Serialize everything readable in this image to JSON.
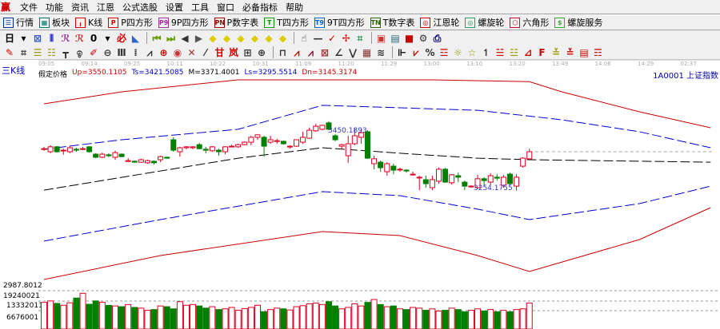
{
  "menu": {
    "logo": "赢",
    "items": [
      "文件",
      "功能",
      "资讯",
      "江恩",
      "公式选股",
      "设置",
      "工具",
      "窗口",
      "必备指标",
      "帮助"
    ]
  },
  "toolbar1": [
    {
      "label": "行情",
      "icon": "quote-list-icon",
      "glyph": "☰",
      "color": "#003399"
    },
    {
      "label": "板块",
      "icon": "sector-icon",
      "glyph": "▦",
      "color": "#007766"
    },
    {
      "label": "K线",
      "icon": "kline-icon",
      "glyph": "╻",
      "color": "#cc0000"
    },
    {
      "label": "P四方形",
      "icon": "p-square-icon",
      "glyph": "P",
      "color": "#cc0000"
    },
    {
      "label": "9P四方形",
      "icon": "9p-square-icon",
      "glyph": "P9",
      "color": "#993399"
    },
    {
      "label": "P数字表",
      "icon": "p-number-table-icon",
      "glyph": "PN",
      "color": "#990000"
    },
    {
      "label": "T四方形",
      "icon": "t-square-icon",
      "glyph": "T",
      "color": "#009900"
    },
    {
      "label": "9T四方形",
      "icon": "9t-square-icon",
      "glyph": "T9",
      "color": "#0066cc"
    },
    {
      "label": "T数字表",
      "icon": "t-number-table-icon",
      "glyph": "TN",
      "color": "#336600"
    },
    {
      "label": "江恩轮",
      "icon": "gann-wheel-icon",
      "glyph": "◎",
      "color": "#cc0000"
    },
    {
      "label": "螺旋轮",
      "icon": "spiral-wheel-icon",
      "glyph": "◎",
      "color": "#339966"
    },
    {
      "label": "六角形",
      "icon": "hexagon-icon",
      "glyph": "⬡",
      "color": "#cc0033"
    },
    {
      "label": "螺旋服务",
      "icon": "dollar-icon",
      "glyph": "$",
      "color": "#33aa33"
    }
  ],
  "toolbar2": [
    {
      "icon": "window-layout-icon",
      "glyph": "日",
      "color": "#000"
    },
    {
      "icon": "dropdown-arrow-icon",
      "glyph": "▾",
      "color": "#000"
    },
    {
      "icon": "indicator-icon",
      "glyph": "⊠",
      "color": "#3355cc"
    },
    {
      "icon": "bars-icon",
      "glyph": "⫴",
      "color": "#3333cc"
    },
    {
      "icon": "wave-icon",
      "glyph": "ℛ",
      "color": "#993399"
    },
    {
      "icon": "wave-red-icon",
      "glyph": "ℛ",
      "color": "#cc3333"
    },
    {
      "icon": "zero-icon",
      "glyph": "0",
      "color": "#000"
    },
    {
      "icon": "dropdown-arrow-icon",
      "glyph": "▾",
      "color": "#000"
    },
    {
      "icon": "bisect-icon",
      "glyph": "必",
      "color": "#cc0000"
    },
    {
      "icon": "flag-icon",
      "glyph": "◣",
      "color": "#3366cc"
    },
    {
      "sep": true
    },
    {
      "icon": "first-icon",
      "glyph": "⏮",
      "color": "#669900"
    },
    {
      "icon": "last-icon",
      "glyph": "⏭",
      "color": "#669900"
    },
    {
      "icon": "prev-icon",
      "glyph": "◀",
      "color": "#333"
    },
    {
      "icon": "next-icon",
      "glyph": "▶",
      "color": "#555"
    },
    {
      "icon": "zoom-in-icon",
      "glyph": "◆",
      "color": "#ddcc00"
    },
    {
      "icon": "zoom-out-icon",
      "glyph": "◆",
      "color": "#ddcc00"
    },
    {
      "icon": "expand-icon",
      "glyph": "◆",
      "color": "#ddcc00"
    },
    {
      "icon": "shrink-icon",
      "glyph": "◆",
      "color": "#ddcc00"
    },
    {
      "icon": "move-left-icon",
      "glyph": "◆",
      "color": "#ddcc00"
    },
    {
      "icon": "move-right-icon",
      "glyph": "◆",
      "color": "#ddcc00"
    },
    {
      "sep": true
    },
    {
      "icon": "hand-icon",
      "glyph": "☝",
      "color": "#333"
    },
    {
      "icon": "hline-icon",
      "glyph": "—",
      "color": "#333"
    },
    {
      "icon": "check-icon",
      "glyph": "✓",
      "color": "#cc0000"
    },
    {
      "icon": "cross-icon",
      "glyph": "✢",
      "color": "#cc0000"
    },
    {
      "icon": "grid-icon",
      "glyph": "⌗",
      "color": "#339966"
    },
    {
      "sep": true
    },
    {
      "icon": "calendar-icon",
      "glyph": "▣",
      "color": "#cc3333"
    },
    {
      "icon": "calculator-icon",
      "glyph": "▤",
      "color": "#226677"
    },
    {
      "icon": "save-icon",
      "glyph": "■",
      "color": "#cc0000"
    },
    {
      "icon": "settings-icon",
      "glyph": "⚙",
      "color": "#333"
    },
    {
      "icon": "print-icon",
      "glyph": "⎙",
      "color": "#000066"
    }
  ],
  "toolbar3": [
    {
      "icon": "pen-icon",
      "glyph": "✎",
      "color": "#cc0000"
    },
    {
      "icon": "hash-icon",
      "glyph": "⌗",
      "color": "#333"
    },
    {
      "icon": "fib-icon",
      "glyph": "☰",
      "color": "#999900"
    },
    {
      "icon": "fib2-icon",
      "glyph": "☷",
      "color": "#999900"
    },
    {
      "icon": "gate-icon",
      "glyph": "┳",
      "color": "#333"
    },
    {
      "icon": "spiral-icon",
      "glyph": "ඉ",
      "color": "#333"
    },
    {
      "icon": "pencil-icon",
      "glyph": "✐",
      "color": "#cc0000"
    },
    {
      "icon": "circle-icon",
      "glyph": "⊖",
      "color": "#333"
    },
    {
      "icon": "vlines-icon",
      "glyph": "Ⅲ",
      "color": "#333"
    },
    {
      "icon": "dots-icon",
      "glyph": "⁞",
      "color": "#333"
    },
    {
      "icon": "fan-icon",
      "glyph": "⩘",
      "color": "#333"
    },
    {
      "icon": "cycle-icon",
      "glyph": "⊕",
      "color": "#cc0000"
    },
    {
      "icon": "eye-icon",
      "glyph": "◉",
      "color": "#cc3333"
    },
    {
      "icon": "x-icon",
      "glyph": "✕",
      "color": "#993333"
    },
    {
      "icon": "diag-icon",
      "glyph": "⁄",
      "color": "#333"
    },
    {
      "icon": "box-icon",
      "glyph": "甘",
      "color": "#cc0000"
    },
    {
      "icon": "box2-icon",
      "glyph": "岚",
      "color": "#cc0000"
    },
    {
      "icon": "pattern-icon",
      "glyph": "⊞",
      "color": "#333"
    },
    {
      "icon": "pattern2-icon",
      "glyph": "⊕",
      "color": "#333"
    },
    {
      "sep": true
    },
    {
      "icon": "channel-icon",
      "glyph": "⊓",
      "color": "#333"
    },
    {
      "icon": "gann-fan-icon",
      "glyph": "⩘",
      "color": "#cc0000"
    },
    {
      "icon": "gann-fan2-icon",
      "glyph": "⩘",
      "color": "#990033"
    },
    {
      "icon": "gann-box-icon",
      "glyph": "⊠",
      "color": "#993333"
    },
    {
      "icon": "angle-icon",
      "glyph": "∠",
      "color": "#333"
    },
    {
      "icon": "vee-icon",
      "glyph": "⋁",
      "color": "#333"
    },
    {
      "icon": "table-icon",
      "glyph": "▦",
      "color": "#883333"
    },
    {
      "icon": "wave-line-icon",
      "glyph": "≋",
      "color": "#333"
    },
    {
      "sep": true
    },
    {
      "icon": "chart-axis-icon",
      "glyph": "⊩",
      "color": "#000"
    },
    {
      "icon": "gann-line-icon",
      "glyph": "⩗",
      "color": "#cc0000"
    },
    {
      "icon": "percent-icon",
      "glyph": "%",
      "color": "#333"
    },
    {
      "icon": "level-icon",
      "glyph": "☲",
      "color": "#cc0000"
    },
    {
      "icon": "sun-icon",
      "glyph": "☼",
      "color": "#999900"
    },
    {
      "icon": "star-line-icon",
      "glyph": "☆",
      "color": "#999900"
    },
    {
      "icon": "pin-icon",
      "glyph": "↿",
      "color": "#333"
    },
    {
      "icon": "level2-icon",
      "glyph": "☱",
      "color": "#cc0000"
    },
    {
      "icon": "level3-icon",
      "glyph": "☳",
      "color": "#999900"
    },
    {
      "icon": "level4-icon",
      "glyph": "⊿",
      "color": "#cc0000"
    },
    {
      "icon": "level5-icon",
      "glyph": "F",
      "color": "#cc0000"
    },
    {
      "icon": "level6-icon",
      "glyph": "≚",
      "color": "#999900"
    },
    {
      "icon": "level7-icon",
      "glyph": "≚",
      "color": "#cc0000"
    },
    {
      "icon": "level8-icon",
      "glyph": "▤",
      "color": "#cc0000"
    },
    {
      "icon": "level9-icon",
      "glyph": "☶",
      "color": "#cc0000"
    }
  ],
  "time_labels": [
    "09:05",
    "09:14",
    "09:25",
    "10:11",
    "10:22",
    "10:31",
    "11:09",
    "11:20",
    "11:29",
    "13:00",
    "13:10",
    "13:20",
    "13:49",
    "14:06",
    "14:29",
    "02:37"
  ],
  "indicator_label": "三K线",
  "info": [
    {
      "text": "假定价格",
      "color": "#000000"
    },
    {
      "text": "Up=3550.1105",
      "color": "#cc0000"
    },
    {
      "text": "Ts=3421.5085",
      "color": "#0000cc"
    },
    {
      "text": "M=3371.4001",
      "color": "#000000"
    },
    {
      "text": "Ls=3295.5514",
      "color": "#0000cc"
    },
    {
      "text": "Dn=3145.3174",
      "color": "#cc0000"
    }
  ],
  "symbol": "1A0001 上证指数",
  "colors": {
    "up": "#e00020",
    "down": "#008000",
    "upper_band": "#cc0000",
    "inner_band": "#0000cc",
    "mid": "#000000"
  },
  "chart_data": {
    "type": "candlestick",
    "ylim": [
      2951,
      3606
    ],
    "annotations": {
      "high": "3450.1893",
      "low": "3254.1755"
    },
    "candles_ohlc": [
      [
        3382,
        3388,
        3375,
        3382
      ],
      [
        3372,
        3393,
        3367,
        3388
      ],
      [
        3388,
        3390,
        3369,
        3372
      ],
      [
        3377,
        3382,
        3362,
        3377
      ],
      [
        3372,
        3390,
        3367,
        3385
      ],
      [
        3380,
        3385,
        3372,
        3377
      ],
      [
        3382,
        3388,
        3377,
        3382
      ],
      [
        3388,
        3390,
        3369,
        3372
      ],
      [
        3364,
        3367,
        3351,
        3354
      ],
      [
        3354,
        3369,
        3351,
        3364
      ],
      [
        3362,
        3367,
        3354,
        3359
      ],
      [
        3354,
        3375,
        3346,
        3369
      ],
      [
        3364,
        3367,
        3354,
        3356
      ],
      [
        3343,
        3351,
        3338,
        3343
      ],
      [
        3341,
        3343,
        3336,
        3338
      ],
      [
        3338,
        3349,
        3336,
        3346
      ],
      [
        3336,
        3346,
        3333,
        3343
      ],
      [
        3341,
        3343,
        3330,
        3336
      ],
      [
        3346,
        3359,
        3338,
        3356
      ],
      [
        3354,
        3356,
        3349,
        3351
      ],
      [
        3411,
        3419,
        3372,
        3377
      ],
      [
        3372,
        3388,
        3356,
        3385
      ],
      [
        3385,
        3390,
        3380,
        3388
      ],
      [
        3385,
        3390,
        3380,
        3388
      ],
      [
        3395,
        3401,
        3380,
        3382
      ],
      [
        3380,
        3388,
        3367,
        3377
      ],
      [
        3375,
        3390,
        3372,
        3388
      ],
      [
        3377,
        3382,
        3359,
        3372
      ],
      [
        3372,
        3390,
        3364,
        3388
      ],
      [
        3390,
        3395,
        3388,
        3390
      ],
      [
        3388,
        3398,
        3385,
        3395
      ],
      [
        3395,
        3406,
        3393,
        3403
      ],
      [
        3403,
        3424,
        3393,
        3419
      ],
      [
        3419,
        3429,
        3411,
        3427
      ],
      [
        3419,
        3424,
        3356,
        3390
      ],
      [
        3403,
        3424,
        3398,
        3411
      ],
      [
        3408,
        3414,
        3398,
        3408
      ],
      [
        3406,
        3408,
        3395,
        3398
      ],
      [
        3390,
        3393,
        3382,
        3390
      ],
      [
        3390,
        3411,
        3388,
        3411
      ],
      [
        3403,
        3437,
        3398,
        3419
      ],
      [
        3416,
        3450,
        3414,
        3442
      ],
      [
        3440,
        3463,
        3437,
        3455
      ],
      [
        3445,
        3460,
        3442,
        3458
      ],
      [
        3466,
        3471,
        3442,
        3445
      ],
      [
        3424,
        3429,
        3406,
        3411
      ],
      [
        3390,
        3398,
        3382,
        3395
      ],
      [
        3359,
        3424,
        3336,
        3398
      ],
      [
        3398,
        3450,
        3393,
        3424
      ],
      [
        3419,
        3445,
        3398,
        3434
      ],
      [
        3437,
        3442,
        3349,
        3351
      ],
      [
        3333,
        3359,
        3315,
        3349
      ],
      [
        3338,
        3343,
        3307,
        3320
      ],
      [
        3307,
        3338,
        3294,
        3333
      ],
      [
        3325,
        3333,
        3299,
        3312
      ],
      [
        3315,
        3320,
        3307,
        3315
      ],
      [
        3312,
        3315,
        3304,
        3310
      ],
      [
        3299,
        3307,
        3294,
        3299
      ],
      [
        3289,
        3294,
        3247,
        3289
      ],
      [
        3281,
        3294,
        3255,
        3268
      ],
      [
        3255,
        3294,
        3247,
        3281
      ],
      [
        3276,
        3320,
        3268,
        3315
      ],
      [
        3315,
        3320,
        3271,
        3273
      ],
      [
        3271,
        3299,
        3265,
        3297
      ],
      [
        3294,
        3304,
        3273,
        3289
      ],
      [
        3273,
        3278,
        3247,
        3260
      ],
      [
        3260,
        3263,
        3255,
        3260
      ],
      [
        3255,
        3297,
        3252,
        3284
      ],
      [
        3284,
        3289,
        3260,
        3278
      ],
      [
        3273,
        3302,
        3263,
        3294
      ],
      [
        3289,
        3299,
        3278,
        3286
      ],
      [
        3263,
        3297,
        3255,
        3289
      ],
      [
        3299,
        3304,
        3263,
        3268
      ],
      [
        3260,
        3299,
        3245,
        3289
      ],
      [
        3325,
        3354,
        3320,
        3351
      ],
      [
        3349,
        3382,
        3346,
        3372
      ]
    ],
    "bands": [
      {
        "name": "upper-outer",
        "color": "#cc0000",
        "points": [
          [
            0,
            3528
          ],
          [
            12,
            3567
          ],
          [
            30,
            3606
          ],
          [
            45,
            3606
          ],
          [
            60,
            3606
          ],
          [
            75,
            3600
          ],
          [
            80,
            3567
          ],
          [
            92,
            3502
          ],
          [
            103,
            3450
          ]
        ]
      },
      {
        "name": "upper-inner",
        "color": "#0000cc",
        "points": [
          [
            0,
            3380
          ],
          [
            12,
            3411
          ],
          [
            30,
            3445
          ],
          [
            43,
            3523
          ],
          [
            67,
            3507
          ],
          [
            80,
            3476
          ],
          [
            92,
            3437
          ],
          [
            103,
            3385
          ]
        ]
      },
      {
        "name": "middle",
        "color": "#000000",
        "points": [
          [
            0,
            3247
          ],
          [
            30,
            3351
          ],
          [
            43,
            3385
          ],
          [
            55,
            3367
          ],
          [
            67,
            3351
          ],
          [
            75,
            3346
          ],
          [
            103,
            3338
          ]
        ]
      },
      {
        "name": "lower-inner",
        "color": "#0000cc",
        "points": [
          [
            0,
            3081
          ],
          [
            18,
            3151
          ],
          [
            43,
            3242
          ],
          [
            55,
            3229
          ],
          [
            67,
            3185
          ],
          [
            75,
            3151
          ],
          [
            92,
            3203
          ],
          [
            103,
            3260
          ]
        ]
      },
      {
        "name": "lower-outer",
        "color": "#cc0000",
        "points": [
          [
            0,
            2956
          ],
          [
            18,
            3034
          ],
          [
            43,
            3112
          ],
          [
            55,
            3099
          ],
          [
            67,
            3034
          ],
          [
            75,
            2982
          ],
          [
            92,
            3086
          ],
          [
            103,
            3190
          ]
        ]
      }
    ],
    "last_price_line": 3372,
    "volume_axis_labels": [
      "2987.8012",
      "19240021",
      "13332011",
      "6676001"
    ],
    "volume": [
      18500000,
      19500000,
      17800000,
      16500000,
      18200000,
      21500000,
      24800000,
      17200000,
      19500000,
      18600000,
      16400000,
      16000000,
      15500000,
      17000000,
      15000000,
      14500000,
      13000000,
      13500000,
      16000000,
      15500000,
      14000000,
      19000000,
      16500000,
      17000000,
      16000000,
      14500000,
      15500000,
      13500000,
      14000000,
      15000000,
      13000000,
      14200000,
      15000000,
      16500000,
      12000000,
      13500000,
      14500000,
      14000000,
      13200000,
      15500000,
      16200000,
      17500000,
      18000000,
      17000000,
      19000000,
      16000000,
      14000000,
      15000000,
      17500000,
      16000000,
      18500000,
      20500000,
      17000000,
      15500000,
      16000000,
      14000000,
      13500000,
      15000000,
      14500000,
      13000000,
      14000000,
      12500000,
      13000000,
      14500000,
      13500000,
      12000000,
      13000000,
      14000000,
      12500000,
      13500000,
      12000000,
      13000000,
      12000000,
      13500000,
      14000000,
      18000000
    ]
  }
}
